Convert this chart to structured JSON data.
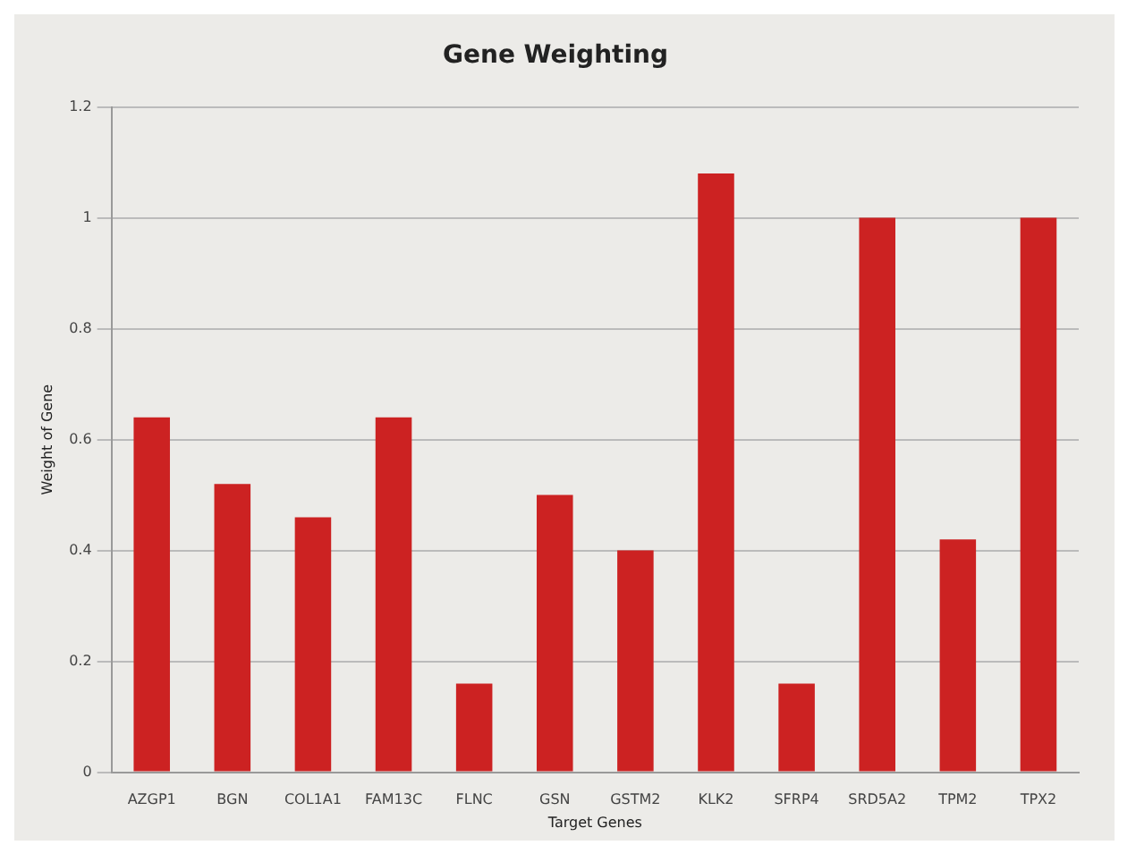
{
  "chart_data": {
    "type": "bar",
    "title": "Gene Weighting",
    "xlabel": "Target Genes",
    "ylabel": "Weight of Gene",
    "categories": [
      "AZGP1",
      "BGN",
      "COL1A1",
      "FAM13C",
      "FLNC",
      "GSN",
      "GSTM2",
      "KLK2",
      "SFRP4",
      "SRD5A2",
      "TPM2",
      "TPX2"
    ],
    "values": [
      0.64,
      0.52,
      0.46,
      0.64,
      0.16,
      0.5,
      0.4,
      1.08,
      0.16,
      1,
      0.42,
      1
    ],
    "color": "#cc2222",
    "ylim": [
      0,
      1.2
    ],
    "yticks": [
      0,
      0.2,
      0.4,
      0.6,
      0.8,
      1,
      1.2
    ],
    "grid": "y",
    "legend": false
  }
}
